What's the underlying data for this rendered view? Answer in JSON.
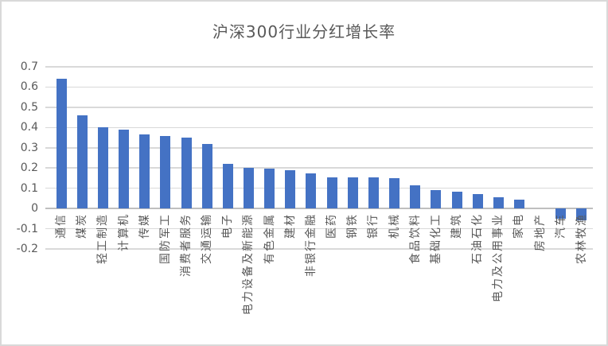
{
  "frame": {
    "background": "#FFFFFF",
    "border_color": "#D9D9D9"
  },
  "chart_data": {
    "type": "bar",
    "title": "沪深300行业分红增长率",
    "xlabel": "",
    "ylabel": "",
    "legend_position": "none",
    "grid": true,
    "ylim": [
      -0.2,
      0.7
    ],
    "yticks": [
      {
        "value": 0.7,
        "label": "0.7"
      },
      {
        "value": 0.6,
        "label": "0.6"
      },
      {
        "value": 0.5,
        "label": "0.5"
      },
      {
        "value": 0.4,
        "label": "0.4"
      },
      {
        "value": 0.3,
        "label": "0.3"
      },
      {
        "value": 0.2,
        "label": "0.2"
      },
      {
        "value": 0.1,
        "label": "0.1"
      },
      {
        "value": 0,
        "label": "0"
      },
      {
        "value": -0.1,
        "label": "-0.1"
      },
      {
        "value": -0.2,
        "label": "-0.2"
      }
    ],
    "categories": [
      "通信",
      "煤炭",
      "轻工制造",
      "计算机",
      "传媒",
      "国防军工",
      "消费者服务",
      "交通运输",
      "电子",
      "电力设备及新能源",
      "有色金属",
      "建材",
      "非银行金融",
      "医药",
      "钢铁",
      "银行",
      "机械",
      "食品饮料",
      "基础化工",
      "建筑",
      "石油石化",
      "电力及公用事业",
      "家电",
      "房地产",
      "汽车",
      "农林牧渔"
    ],
    "values": [
      0.64,
      0.46,
      0.4,
      0.39,
      0.365,
      0.36,
      0.35,
      0.32,
      0.22,
      0.2,
      0.195,
      0.19,
      0.175,
      0.155,
      0.152,
      0.152,
      0.15,
      0.115,
      0.09,
      0.082,
      0.07,
      0.057,
      0.042,
      0,
      -0.05,
      -0.06
    ],
    "colors": {
      "bar": "#4472C4",
      "gridline": "#D9D9D9",
      "axis_line": "#BFBFBF",
      "text": "#595959"
    }
  }
}
